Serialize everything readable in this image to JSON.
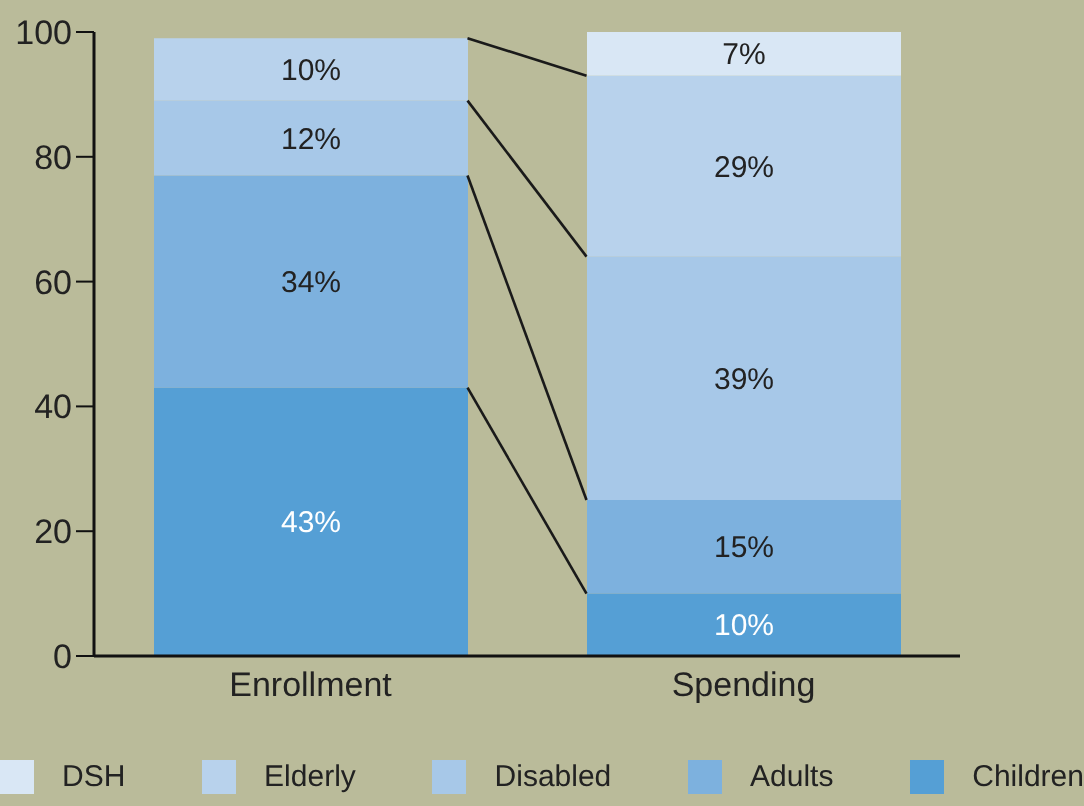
{
  "chart_data": {
    "type": "bar",
    "stacked": true,
    "categories": [
      "Enrollment",
      "Spending"
    ],
    "series": [
      {
        "name": "Children",
        "color": "#559fd5",
        "values": [
          43,
          10
        ],
        "value_labels": [
          "43%",
          "10%"
        ]
      },
      {
        "name": "Adults",
        "color": "#7db1de",
        "values": [
          34,
          15
        ],
        "value_labels": [
          "34%",
          "15%"
        ]
      },
      {
        "name": "Disabled",
        "color": "#a7c8e8",
        "values": [
          12,
          39
        ],
        "value_labels": [
          "12%",
          "39%"
        ]
      },
      {
        "name": "Elderly",
        "color": "#b8d2ec",
        "values": [
          10,
          29
        ],
        "value_labels": [
          "10%",
          "29%"
        ]
      },
      {
        "name": "DSH",
        "color": "#d9e7f5",
        "values": [
          null,
          7
        ],
        "value_labels": [
          null,
          "7%"
        ]
      }
    ],
    "ylim": [
      0,
      100
    ],
    "yticks": [
      0,
      20,
      40,
      60,
      80,
      100
    ],
    "legend": "bottom"
  }
}
